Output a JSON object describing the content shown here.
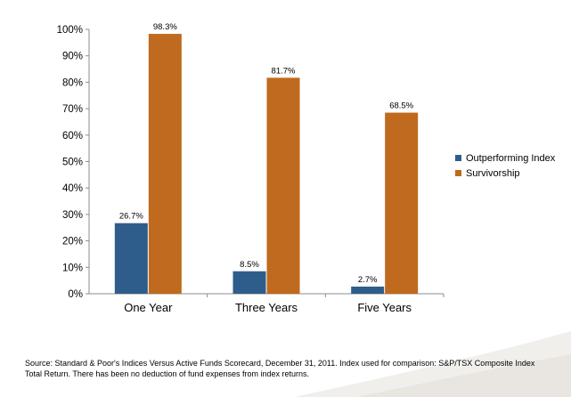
{
  "chart_data": {
    "type": "bar",
    "categories": [
      "One Year",
      "Three Years",
      "Five Years"
    ],
    "series": [
      {
        "name": "Outperforming Index",
        "color": "#2e5d8b",
        "values": [
          26.7,
          8.5,
          2.7
        ],
        "labels": [
          "26.7%",
          "8.5%",
          "2.7%"
        ]
      },
      {
        "name": "Survivorship",
        "color": "#bf6a1e",
        "values": [
          98.3,
          81.7,
          68.5
        ],
        "labels": [
          "98.3%",
          "81.7%",
          "68.5%"
        ]
      }
    ],
    "ylim": [
      0,
      100
    ],
    "yticks": [
      "0%",
      "10%",
      "20%",
      "30%",
      "40%",
      "50%",
      "60%",
      "70%",
      "80%",
      "90%",
      "100%"
    ],
    "grid": false,
    "legend_position": "right"
  },
  "footnote": "Source: Standard & Poor's Indices Versus Active Funds Scorecard, December 31, 2011. Index used for comparison: S&P/TSX Composite Index Total Return. There has been no deduction of fund expenses from index returns."
}
